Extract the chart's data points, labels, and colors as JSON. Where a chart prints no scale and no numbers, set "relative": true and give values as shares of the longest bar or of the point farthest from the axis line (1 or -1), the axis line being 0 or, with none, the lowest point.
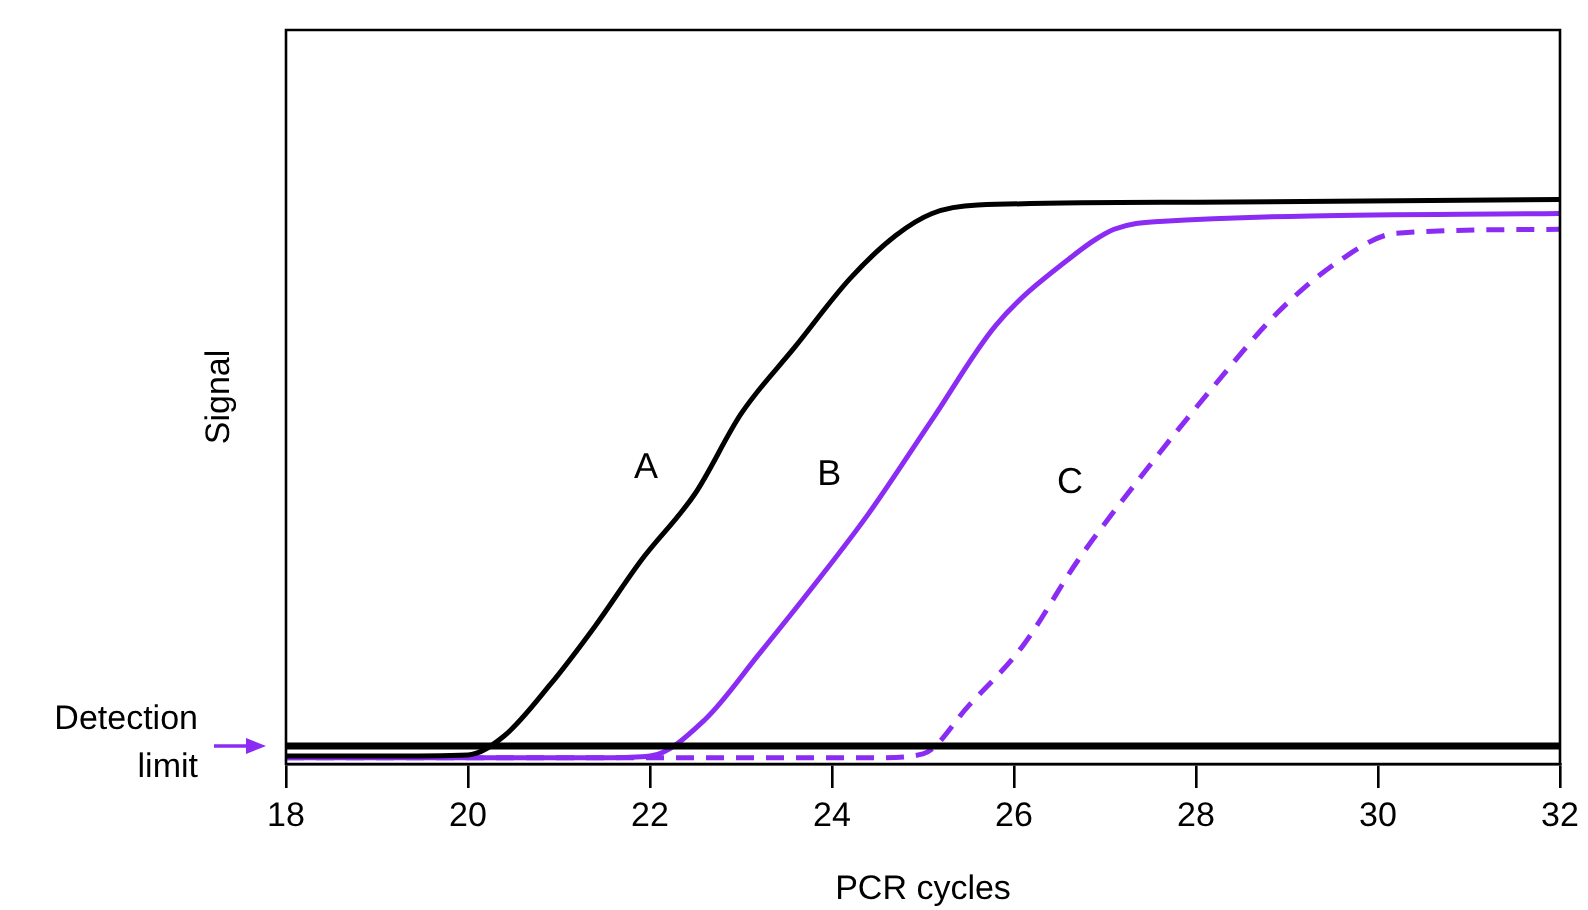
{
  "chart_data": {
    "type": "line",
    "xlabel": "PCR cycles",
    "ylabel": "Signal",
    "relative": true,
    "xlim": [
      18,
      32
    ],
    "xticks": [
      18,
      20,
      22,
      24,
      26,
      28,
      30,
      32
    ],
    "grid": false,
    "legend": false,
    "marker": "none",
    "series": [
      {
        "name": "A",
        "color": "#000000",
        "line_style": "solid",
        "x": [
          18,
          19,
          20,
          20.4,
          20.9,
          21.4,
          21.9,
          22.5,
          23,
          23.6,
          24.2,
          24.7,
          25.1,
          25.6,
          28,
          32
        ],
        "values": [
          0.014,
          0.014,
          0.016,
          0.05,
          0.14,
          0.245,
          0.36,
          0.48,
          0.62,
          0.74,
          0.86,
          0.936,
          0.975,
          0.99,
          0.995,
          1
        ]
      },
      {
        "name": "B",
        "color": "#8b2cf5",
        "line_style": "solid",
        "x": [
          18,
          21.5,
          22,
          22.6,
          23.2,
          23.8,
          24.4,
          25.1,
          25.8,
          26.6,
          27.1,
          27.6,
          32
        ],
        "values": [
          0.011,
          0.011,
          0.014,
          0.078,
          0.195,
          0.316,
          0.443,
          0.61,
          0.777,
          0.894,
          0.947,
          0.961,
          0.975
        ]
      },
      {
        "name": "C",
        "color": "#8b2cf5",
        "line_style": "dashed",
        "x": [
          18,
          24.5,
          25,
          25.5,
          26.1,
          26.7,
          27.4,
          28.2,
          28.9,
          29.6,
          30.2,
          32
        ],
        "values": [
          0.011,
          0.011,
          0.018,
          0.103,
          0.21,
          0.36,
          0.51,
          0.67,
          0.8,
          0.894,
          0.94,
          0.947
        ]
      }
    ],
    "ref_lines": [
      {
        "axis": "y",
        "value": 0.032,
        "label": "Detection limit",
        "color": "#000000"
      }
    ]
  }
}
